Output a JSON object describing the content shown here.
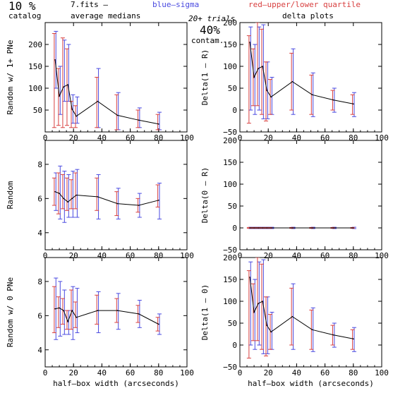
{
  "header": {
    "pct": "10 %",
    "catalog": "catalog",
    "fits": "7.fits  –",
    "medians": "average medians",
    "blue": "blue–sigma",
    "red": "red–upper/lower quartile",
    "trials": "20+ trials",
    "contam_pct": "40%",
    "contam": "contam.",
    "delta": "delta plots"
  },
  "colors": {
    "median": "#000000",
    "sigma": "#4a4ae0",
    "quartile": "#d84040"
  },
  "chart_data": [
    {
      "type": "line",
      "ylabel": "Random w/ 1+ PNe",
      "xlim": [
        0,
        100
      ],
      "ylim": [
        0,
        250
      ],
      "xticks": [
        "0",
        "20",
        "40",
        "60",
        "80",
        "100"
      ],
      "yticks": [
        "50",
        "100",
        "150",
        "200"
      ],
      "ytick_values": [
        50,
        100,
        150,
        200
      ],
      "x": [
        7,
        10,
        13,
        16,
        19,
        22,
        37,
        51,
        66,
        80
      ],
      "y": [
        165,
        82,
        103,
        108,
        52,
        36,
        70,
        38,
        27,
        18
      ],
      "sigma": [
        [
          100,
          230
        ],
        [
          40,
          150
        ],
        [
          70,
          210
        ],
        [
          70,
          200
        ],
        [
          20,
          85
        ],
        [
          20,
          80
        ],
        [
          10,
          145
        ],
        [
          5,
          90
        ],
        [
          10,
          55
        ],
        [
          5,
          45
        ]
      ],
      "quartile": [
        [
          10,
          225
        ],
        [
          15,
          145
        ],
        [
          10,
          215
        ],
        [
          15,
          190
        ],
        [
          10,
          70
        ],
        [
          10,
          60
        ],
        [
          10,
          125
        ],
        [
          5,
          85
        ],
        [
          10,
          50
        ],
        [
          5,
          40
        ]
      ]
    },
    {
      "type": "line",
      "ylabel": "Delta(1 – R)",
      "xlim": [
        0,
        100
      ],
      "ylim": [
        -50,
        200
      ],
      "xticks": [
        "0",
        "20",
        "40",
        "60",
        "80",
        "100"
      ],
      "yticks": [
        "−50",
        "0",
        "50",
        "100",
        "150",
        "200"
      ],
      "ytick_values": [
        -50,
        0,
        50,
        100,
        150,
        200
      ],
      "x": [
        7,
        10,
        13,
        16,
        19,
        22,
        37,
        51,
        66,
        80
      ],
      "y": [
        155,
        75,
        95,
        100,
        45,
        30,
        65,
        35,
        23,
        14
      ],
      "sigma": [
        [
          0,
          190
        ],
        [
          -10,
          150
        ],
        [
          0,
          190
        ],
        [
          -20,
          195
        ],
        [
          -20,
          110
        ],
        [
          -10,
          75
        ],
        [
          -10,
          140
        ],
        [
          -15,
          85
        ],
        [
          -5,
          50
        ],
        [
          -15,
          40
        ]
      ],
      "quartile": [
        [
          -30,
          170
        ],
        [
          10,
          140
        ],
        [
          10,
          200
        ],
        [
          -10,
          185
        ],
        [
          -25,
          110
        ],
        [
          -10,
          70
        ],
        [
          0,
          130
        ],
        [
          -10,
          80
        ],
        [
          0,
          45
        ],
        [
          -10,
          35
        ]
      ]
    },
    {
      "type": "line",
      "ylabel": "Random",
      "xlim": [
        0,
        100
      ],
      "ylim": [
        3,
        9.4
      ],
      "xticks": [
        "0",
        "20",
        "40",
        "60",
        "80",
        "100"
      ],
      "yticks": [
        "4",
        "6",
        "8"
      ],
      "ytick_values": [
        4,
        6,
        8
      ],
      "x": [
        7,
        10,
        13,
        16,
        19,
        22,
        37,
        51,
        66,
        80
      ],
      "y": [
        6.4,
        6.3,
        6.0,
        5.8,
        6.0,
        6.2,
        6.1,
        5.7,
        5.6,
        5.9
      ],
      "sigma": [
        [
          5.3,
          7.5
        ],
        [
          4.8,
          7.9
        ],
        [
          4.6,
          7.6
        ],
        [
          4.9,
          7.4
        ],
        [
          4.9,
          7.6
        ],
        [
          4.9,
          7.7
        ],
        [
          4.8,
          7.4
        ],
        [
          4.8,
          6.6
        ],
        [
          4.9,
          6.3
        ],
        [
          4.8,
          6.9
        ]
      ],
      "quartile": [
        [
          5.6,
          7.2
        ],
        [
          5.1,
          7.5
        ],
        [
          5.4,
          7.4
        ],
        [
          5.3,
          7.2
        ],
        [
          5.4,
          7.1
        ],
        [
          5.4,
          7.5
        ],
        [
          5.3,
          7.2
        ],
        [
          5.0,
          6.4
        ],
        [
          5.2,
          6.0
        ],
        [
          5.5,
          6.8
        ]
      ]
    },
    {
      "type": "line",
      "ylabel": "Delta(0 – R)",
      "xlim": [
        0,
        100
      ],
      "ylim": [
        -50,
        200
      ],
      "xticks": [
        "0",
        "20",
        "40",
        "60",
        "80",
        "100"
      ],
      "yticks": [
        "−50",
        "0",
        "50",
        "100",
        "150",
        "200"
      ],
      "ytick_values": [
        -50,
        0,
        50,
        100,
        150,
        200
      ],
      "x": [
        7,
        10,
        13,
        16,
        19,
        22,
        37,
        51,
        66,
        80
      ],
      "y": [
        0,
        0,
        0,
        0,
        0,
        0,
        0,
        0,
        0,
        0
      ],
      "sigma": [
        [
          -1.5,
          1.5
        ],
        [
          -1.5,
          1.5
        ],
        [
          -1.5,
          1.5
        ],
        [
          -1.5,
          1.5
        ],
        [
          -1.5,
          1.5
        ],
        [
          -1.5,
          1.5
        ],
        [
          -1.5,
          1.5
        ],
        [
          -1.5,
          1.5
        ],
        [
          -1.5,
          1.5
        ],
        [
          -1.5,
          1.5
        ]
      ],
      "quartile": [
        [
          -1,
          1
        ],
        [
          -1,
          1
        ],
        [
          -1,
          1
        ],
        [
          -1,
          1
        ],
        [
          -1,
          1
        ],
        [
          -1,
          1
        ],
        [
          -1,
          1
        ],
        [
          -1,
          1
        ],
        [
          -1,
          1
        ],
        [
          -1,
          1
        ]
      ]
    },
    {
      "type": "line",
      "ylabel": "Random w/ 0 PNe",
      "xlabel": "half–box width (arcseconds)",
      "xlim": [
        0,
        100
      ],
      "ylim": [
        3,
        9.4
      ],
      "xticks": [
        "0",
        "20",
        "40",
        "60",
        "80",
        "100"
      ],
      "yticks": [
        "4",
        "6",
        "8"
      ],
      "ytick_values": [
        4,
        6,
        8
      ],
      "x": [
        7,
        10,
        13,
        16,
        19,
        22,
        37,
        51,
        66,
        80
      ],
      "y": [
        6.4,
        6.45,
        6.3,
        5.65,
        6.3,
        5.9,
        6.3,
        6.3,
        6.1,
        5.5
      ],
      "sigma": [
        [
          4.6,
          8.2
        ],
        [
          4.8,
          8.0
        ],
        [
          4.9,
          7.5
        ],
        [
          4.9,
          6.3
        ],
        [
          4.6,
          7.7
        ],
        [
          5.0,
          7.6
        ],
        [
          5.0,
          7.4
        ],
        [
          5.2,
          7.3
        ],
        [
          5.3,
          6.9
        ],
        [
          4.9,
          6.1
        ]
      ],
      "quartile": [
        [
          5.0,
          7.7
        ],
        [
          5.3,
          7.1
        ],
        [
          5.5,
          7.0
        ],
        [
          5.2,
          6.3
        ],
        [
          5.2,
          7.5
        ],
        [
          5.3,
          6.8
        ],
        [
          5.5,
          7.2
        ],
        [
          5.6,
          7.0
        ],
        [
          5.6,
          6.6
        ],
        [
          5.1,
          5.9
        ]
      ]
    },
    {
      "type": "line",
      "ylabel": "Delta(1 – 0)",
      "xlabel": "half–box width (arcseconds)",
      "xlim": [
        0,
        100
      ],
      "ylim": [
        -50,
        200
      ],
      "xticks": [
        "0",
        "20",
        "40",
        "60",
        "80",
        "100"
      ],
      "yticks": [
        "−50",
        "0",
        "50",
        "100",
        "150",
        "200"
      ],
      "ytick_values": [
        -50,
        0,
        50,
        100,
        150,
        200
      ],
      "x": [
        7,
        10,
        13,
        16,
        19,
        22,
        37,
        51,
        66,
        80
      ],
      "y": [
        155,
        75,
        95,
        100,
        45,
        30,
        65,
        35,
        23,
        14
      ],
      "sigma": [
        [
          0,
          190
        ],
        [
          -10,
          150
        ],
        [
          0,
          190
        ],
        [
          -20,
          195
        ],
        [
          -20,
          110
        ],
        [
          -10,
          75
        ],
        [
          -10,
          140
        ],
        [
          -15,
          85
        ],
        [
          -5,
          50
        ],
        [
          -15,
          40
        ]
      ],
      "quartile": [
        [
          -30,
          170
        ],
        [
          10,
          140
        ],
        [
          10,
          200
        ],
        [
          -10,
          185
        ],
        [
          -25,
          110
        ],
        [
          -10,
          70
        ],
        [
          0,
          130
        ],
        [
          -10,
          80
        ],
        [
          0,
          45
        ],
        [
          -10,
          35
        ]
      ]
    }
  ]
}
